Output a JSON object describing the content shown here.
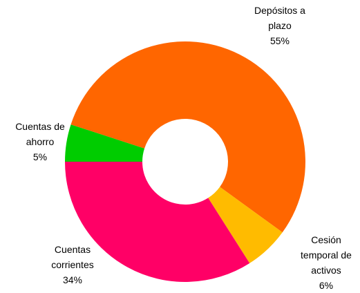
{
  "chart_data": {
    "type": "donut",
    "categories": [
      "Depósitos a plazo",
      "Cesión temporal de activos",
      "Cuentas corrientes",
      "Cuentas de ahorro"
    ],
    "values": [
      55,
      6,
      34,
      5
    ],
    "value_labels": [
      "55%",
      "6%",
      "34%",
      "5%"
    ],
    "colors": [
      "#ff6600",
      "#ffbb00",
      "#ff0066",
      "#00cc00"
    ]
  }
}
